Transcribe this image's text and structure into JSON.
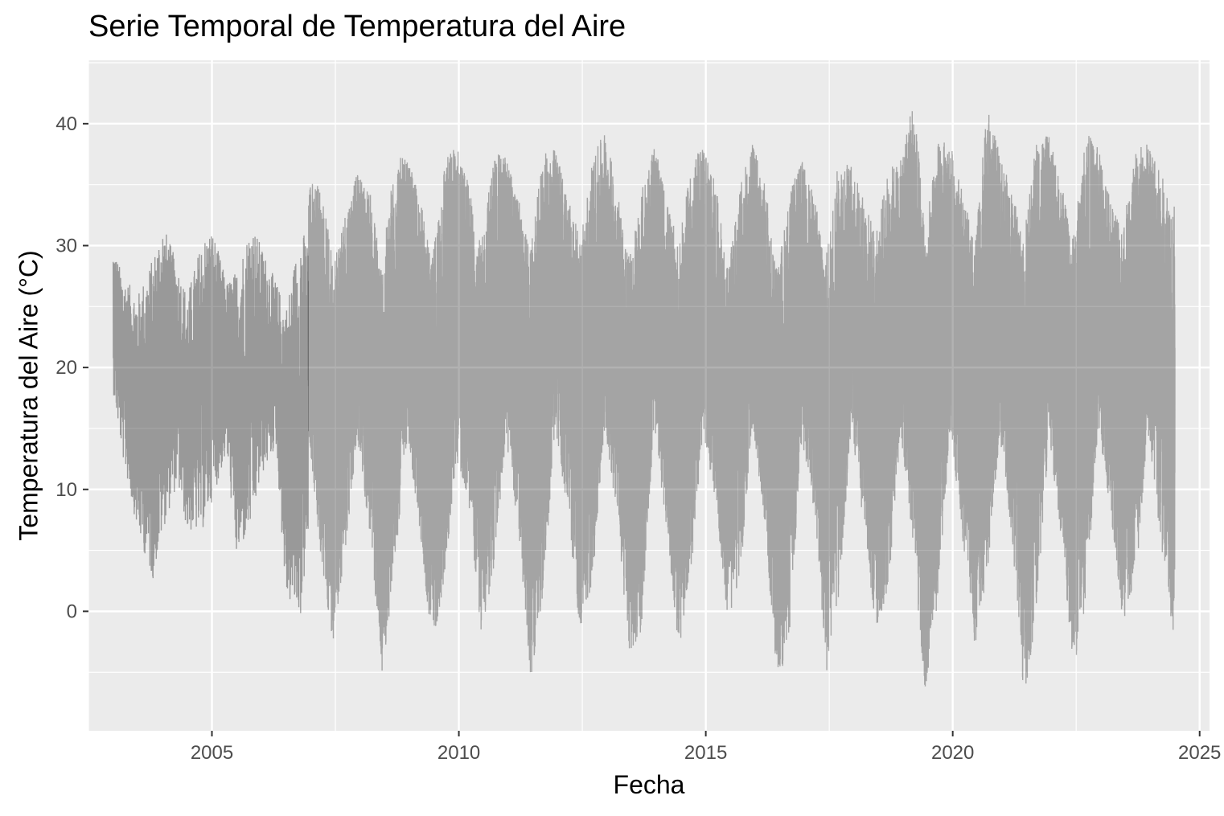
{
  "chart_data": {
    "type": "line",
    "title": "Serie Temporal de Temperatura del Aire",
    "xlabel": "Fecha",
    "ylabel": "Temperatura del Aire (°C)",
    "xlim": [
      2002.5,
      2025.2
    ],
    "ylim": [
      -9.8,
      45.2
    ],
    "x_ticks": [
      2005,
      2010,
      2015,
      2020,
      2025
    ],
    "y_ticks": [
      0,
      10,
      20,
      30,
      40
    ],
    "grid": true,
    "legend": "none",
    "colors": {
      "panel": "#ebebeb",
      "grid": "#ffffff",
      "line": "#000000"
    },
    "series": [
      {
        "x_range": [
          2003.0,
          2006.95
        ],
        "density": "sparse",
        "opacity": 0.35,
        "envelope": {
          "x": [
            2003.0,
            2003.2,
            2003.5,
            2003.8,
            2004.0,
            2004.3,
            2004.5,
            2004.8,
            2005.0,
            2005.3,
            2005.5,
            2005.8,
            2006.0,
            2006.3,
            2006.5,
            2006.8,
            2006.95
          ],
          "upper": [
            29.9,
            27.5,
            26.0,
            29.0,
            32.0,
            28.5,
            26.0,
            30.5,
            31.5,
            27.0,
            28.0,
            32.0,
            30.0,
            27.0,
            25.0,
            31.5,
            30.5
          ],
          "lower": [
            18.0,
            12.5,
            6.5,
            2.5,
            6.5,
            10.5,
            6.5,
            6.5,
            9.0,
            13.0,
            4.2,
            7.0,
            11.0,
            13.5,
            1.0,
            -0.5,
            6.0
          ]
        }
      },
      {
        "x_range": [
          2006.95,
          2024.5
        ],
        "density": "dense",
        "opacity": 0.3,
        "envelope": {
          "x": [
            2006.95,
            2007.2,
            2007.45,
            2007.7,
            2007.95,
            2008.2,
            2008.45,
            2008.7,
            2008.95,
            2009.2,
            2009.45,
            2009.7,
            2009.95,
            2010.2,
            2010.45,
            2010.7,
            2010.95,
            2011.2,
            2011.45,
            2011.7,
            2011.95,
            2012.2,
            2012.45,
            2012.7,
            2012.95,
            2013.2,
            2013.45,
            2013.7,
            2013.95,
            2014.2,
            2014.45,
            2014.7,
            2014.95,
            2015.2,
            2015.45,
            2015.7,
            2015.95,
            2016.2,
            2016.45,
            2016.7,
            2016.95,
            2017.2,
            2017.45,
            2017.7,
            2017.95,
            2018.2,
            2018.45,
            2018.7,
            2018.95,
            2019.2,
            2019.45,
            2019.7,
            2019.95,
            2020.2,
            2020.45,
            2020.7,
            2020.95,
            2021.2,
            2021.45,
            2021.7,
            2021.95,
            2022.2,
            2022.45,
            2022.7,
            2022.95,
            2023.2,
            2023.45,
            2023.7,
            2023.95,
            2024.2,
            2024.5
          ],
          "upper": [
            35.5,
            35.0,
            29.0,
            33.0,
            36.0,
            34.5,
            28.5,
            37.5,
            37.0,
            34.5,
            28.5,
            37.0,
            38.5,
            35.0,
            30.0,
            37.5,
            37.5,
            34.0,
            29.5,
            37.5,
            38.0,
            34.5,
            30.5,
            37.0,
            39.5,
            35.0,
            29.0,
            34.5,
            38.5,
            34.0,
            30.0,
            36.5,
            38.5,
            35.0,
            28.0,
            35.0,
            38.5,
            35.0,
            28.0,
            34.5,
            37.0,
            34.0,
            29.5,
            37.5,
            36.5,
            34.0,
            31.0,
            36.5,
            37.0,
            42.5,
            31.5,
            38.5,
            38.5,
            34.5,
            30.0,
            41.5,
            37.5,
            34.5,
            31.0,
            39.0,
            39.0,
            35.0,
            31.0,
            39.5,
            38.0,
            34.0,
            32.0,
            38.0,
            38.5,
            36.0,
            33.5
          ],
          "lower": [
            15.0,
            4.0,
            -2.5,
            5.0,
            14.0,
            6.0,
            -5.3,
            3.5,
            14.0,
            7.0,
            -3.0,
            2.0,
            12.5,
            9.0,
            -2.0,
            3.0,
            14.0,
            7.0,
            -5.7,
            1.0,
            15.0,
            8.0,
            -1.5,
            2.0,
            15.0,
            8.0,
            -4.0,
            -1.5,
            15.0,
            7.0,
            -3.5,
            3.0,
            14.5,
            9.0,
            -1.0,
            3.0,
            15.0,
            7.0,
            -6.5,
            -2.0,
            14.0,
            8.0,
            -5.0,
            1.0,
            15.0,
            7.0,
            -2.0,
            2.0,
            14.5,
            5.0,
            -7.0,
            1.0,
            15.0,
            6.0,
            -3.0,
            3.0,
            14.5,
            6.0,
            -7.5,
            0.0,
            14.0,
            6.0,
            -5.3,
            1.0,
            15.0,
            8.0,
            -1.0,
            2.0,
            15.0,
            6.0,
            -3.0
          ]
        }
      }
    ]
  }
}
